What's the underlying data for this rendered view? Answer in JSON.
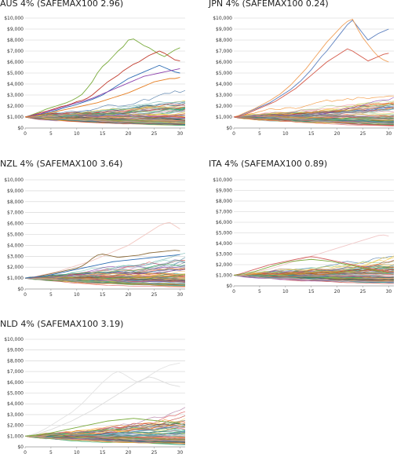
{
  "chart_data": [
    {
      "type": "line",
      "title": "AUS 4% (SAFEMAX100 2.96)",
      "xlim": [
        0,
        31
      ],
      "ylim": [
        0,
        10000
      ],
      "x_ticks": [
        0,
        5,
        10,
        15,
        20,
        25,
        30
      ],
      "y_tick_labels": [
        "$0",
        "$1,000",
        "$2,000",
        "$3,000",
        "$4,000",
        "$5,000",
        "$6,000",
        "$7,000",
        "$8,000",
        "$9,000",
        "$10,000"
      ],
      "grid": "horizontal",
      "series_count": 90,
      "series": [
        {
          "color": "#7aab3c",
          "values": [
            1000,
            1150,
            1320,
            1500,
            1700,
            1850,
            2000,
            2150,
            2300,
            2500,
            2750,
            3050,
            3600,
            4200,
            5000,
            5600,
            6000,
            6500,
            7000,
            7400,
            8000,
            8100,
            7800,
            7500,
            7300,
            7000,
            6700,
            6500,
            6800,
            7100,
            7300
          ]
        },
        {
          "color": "#c0392b",
          "values": [
            1000,
            1100,
            1250,
            1400,
            1500,
            1650,
            1800,
            1950,
            2050,
            2200,
            2400,
            2500,
            2700,
            3000,
            3400,
            3800,
            4200,
            4500,
            4800,
            5200,
            5500,
            5800,
            6000,
            6300,
            6600,
            6800,
            7000,
            6800,
            6500,
            6200,
            6100
          ]
        },
        {
          "color": "#2e6db4",
          "values": [
            1000,
            1050,
            1150,
            1250,
            1350,
            1500,
            1600,
            1750,
            1900,
            2000,
            2150,
            2300,
            2450,
            2600,
            2800,
            3000,
            3300,
            3600,
            3900,
            4200,
            4500,
            4700,
            4900,
            5100,
            5300,
            5500,
            5700,
            5500,
            5300,
            5100,
            5000
          ]
        },
        {
          "color": "#8e44ad",
          "values": [
            1000,
            1100,
            1200,
            1300,
            1450,
            1600,
            1700,
            1850,
            2000,
            2150,
            2300,
            2400,
            2550,
            2700,
            2900,
            3100,
            3300,
            3500,
            3700,
            3900,
            4100,
            4300,
            4500,
            4700,
            4800,
            4900,
            5000,
            5100,
            5200,
            5300,
            5400
          ]
        },
        {
          "color": "#e67e22",
          "values": [
            1000,
            1050,
            1100,
            1200,
            1300,
            1400,
            1500,
            1600,
            1700,
            1800,
            1900,
            2000,
            2100,
            2200,
            2300,
            2450,
            2600,
            2750,
            2900,
            3050,
            3200,
            3400,
            3600,
            3800,
            4000,
            4200,
            4300,
            4400,
            4500,
            4500,
            4600
          ]
        }
      ]
    },
    {
      "type": "line",
      "title": "JPN 4% (SAFEMAX100 0.24)",
      "xlim": [
        0,
        31
      ],
      "ylim": [
        0,
        10000
      ],
      "x_ticks": [
        0,
        5,
        10,
        15,
        20,
        25,
        30
      ],
      "y_tick_labels": [
        "$0",
        "$1,000",
        "$2,000",
        "$3,000",
        "$4,000",
        "$5,000",
        "$6,000",
        "$7,000",
        "$8,000",
        "$9,000",
        "$10,000"
      ],
      "grid": "horizontal",
      "series_count": 90,
      "series": [
        {
          "color": "#5b7fbf",
          "values": [
            1000,
            1100,
            1300,
            1500,
            1700,
            1900,
            2100,
            2300,
            2600,
            2900,
            3200,
            3500,
            3900,
            4300,
            4800,
            5300,
            5900,
            6500,
            7000,
            7600,
            8200,
            8800,
            9400,
            9800,
            9200,
            8600,
            8000,
            8300,
            8600,
            8800,
            9000
          ]
        },
        {
          "color": "#f0a05a",
          "values": [
            1000,
            1150,
            1350,
            1550,
            1750,
            2000,
            2250,
            2500,
            2800,
            3100,
            3500,
            3900,
            4400,
            4900,
            5400,
            6000,
            6600,
            7200,
            7800,
            8300,
            8800,
            9300,
            9700,
            9900,
            9000,
            8200,
            7600,
            7000,
            6500,
            6200,
            6000
          ]
        },
        {
          "color": "#d55a4a",
          "values": [
            1000,
            1050,
            1200,
            1400,
            1600,
            1800,
            2000,
            2200,
            2400,
            2700,
            3000,
            3300,
            3600,
            4000,
            4400,
            4800,
            5200,
            5600,
            6000,
            6300,
            6600,
            6900,
            7200,
            7000,
            6700,
            6400,
            6100,
            6300,
            6500,
            6700,
            6800
          ]
        }
      ]
    },
    {
      "type": "line",
      "title": "NZL 4% (SAFEMAX100 3.64)",
      "xlim": [
        0,
        31
      ],
      "ylim": [
        0,
        10000
      ],
      "x_ticks": [
        0,
        5,
        10,
        15,
        20,
        25,
        30
      ],
      "y_tick_labels": [
        "$0",
        "$1,000",
        "$2,000",
        "$3,000",
        "$4,000",
        "$5,000",
        "$6,000",
        "$7,000",
        "$8,000",
        "$9,000",
        "$10,000"
      ],
      "grid": "horizontal",
      "series_count": 90,
      "series": [
        {
          "color": "#f2c6c0",
          "values": [
            1000,
            1050,
            1150,
            1250,
            1350,
            1450,
            1550,
            1700,
            1850,
            2000,
            2150,
            2300,
            2450,
            2600,
            2800,
            3000,
            3200,
            3400,
            3600,
            3800,
            4000,
            4300,
            4600,
            4900,
            5200,
            5500,
            5800,
            6000,
            6100,
            5800,
            5500
          ]
        },
        {
          "color": "#8b6b3a",
          "values": [
            1000,
            1050,
            1100,
            1200,
            1300,
            1400,
            1500,
            1600,
            1700,
            1800,
            1900,
            2100,
            2400,
            2800,
            3100,
            3200,
            3100,
            3000,
            2900,
            2950,
            3000,
            3050,
            3100,
            3200,
            3300,
            3350,
            3400,
            3450,
            3500,
            3550,
            3500
          ]
        },
        {
          "color": "#2e6db4",
          "values": [
            1000,
            1050,
            1100,
            1150,
            1200,
            1300,
            1400,
            1500,
            1600,
            1700,
            1800,
            1900,
            2000,
            2100,
            2200,
            2300,
            2400,
            2500,
            2550,
            2600,
            2650,
            2700,
            2750,
            2800,
            2850,
            2900,
            2950,
            3000,
            3050,
            3100,
            3150
          ]
        }
      ]
    },
    {
      "type": "line",
      "title": "ITA 4% (SAFEMAX100 0.89)",
      "xlim": [
        0,
        31
      ],
      "ylim": [
        0,
        10000
      ],
      "x_ticks": [
        0,
        5,
        10,
        15,
        20,
        25,
        30
      ],
      "y_tick_labels": [
        "$0",
        "$1,000",
        "$2,000",
        "$3,000",
        "$4,000",
        "$5,000",
        "$6,000",
        "$7,000",
        "$8,000",
        "$9,000",
        "$10,000"
      ],
      "grid": "horizontal",
      "series_count": 90,
      "series": [
        {
          "color": "#f0c7c7",
          "values": [
            1000,
            1050,
            1100,
            1200,
            1300,
            1400,
            1500,
            1600,
            1750,
            1900,
            2050,
            2200,
            2350,
            2500,
            2650,
            2800,
            2950,
            3100,
            3250,
            3400,
            3550,
            3700,
            3850,
            4000,
            4150,
            4300,
            4450,
            4600,
            4750,
            4800,
            4700
          ]
        },
        {
          "color": "#d35f5f",
          "values": [
            1000,
            1100,
            1250,
            1400,
            1550,
            1700,
            1850,
            2000,
            2100,
            2200,
            2300,
            2400,
            2500,
            2600,
            2700,
            2750,
            2700,
            2600,
            2500,
            2400,
            2300,
            2200,
            2100,
            2000,
            1900,
            1800,
            1700,
            1600,
            1500,
            1400,
            1300
          ]
        },
        {
          "color": "#7aab3c",
          "values": [
            1000,
            1050,
            1150,
            1250,
            1350,
            1500,
            1650,
            1800,
            1950,
            2100,
            2200,
            2300,
            2350,
            2400,
            2450,
            2500,
            2450,
            2400,
            2350,
            2300,
            2200,
            2100,
            2000,
            1900,
            1800,
            1700,
            1600,
            1500,
            1400,
            1300,
            1200
          ]
        }
      ]
    },
    {
      "type": "line",
      "title": "NLD 4% (SAFEMAX100 3.19)",
      "xlim": [
        0,
        31
      ],
      "ylim": [
        0,
        10000
      ],
      "x_ticks": [
        0,
        5,
        10,
        15,
        20,
        25,
        30
      ],
      "y_tick_labels": [
        "$0",
        "$1,000",
        "$2,000",
        "$3,000",
        "$4,000",
        "$5,000",
        "$6,000",
        "$7,000",
        "$8,000",
        "$9,000",
        "$10,000"
      ],
      "grid": "horizontal",
      "series_count": 90,
      "series": [
        {
          "color": "#e2e2e2",
          "values": [
            1000,
            1100,
            1250,
            1450,
            1700,
            2000,
            2300,
            2600,
            2900,
            3200,
            3600,
            4000,
            4500,
            5000,
            5500,
            6000,
            6400,
            6800,
            7000,
            6800,
            6500,
            6200,
            6000,
            6300,
            6600,
            6900,
            7200,
            7400,
            7600,
            7700,
            7800
          ]
        },
        {
          "color": "#dcdcdc",
          "values": [
            1000,
            1050,
            1150,
            1300,
            1450,
            1600,
            1800,
            2000,
            2200,
            2400,
            2650,
            2900,
            3150,
            3400,
            3700,
            4000,
            4300,
            4600,
            4900,
            5200,
            5500,
            5800,
            6100,
            6300,
            6500,
            6400,
            6200,
            6000,
            5800,
            5700,
            5600
          ]
        },
        {
          "color": "#7aab3c",
          "values": [
            1000,
            1050,
            1100,
            1150,
            1200,
            1300,
            1400,
            1500,
            1600,
            1700,
            1800,
            1900,
            2000,
            2100,
            2200,
            2300,
            2400,
            2450,
            2500,
            2550,
            2600,
            2650,
            2600,
            2550,
            2500,
            2450,
            2400,
            2350,
            2300,
            2250,
            2200
          ]
        }
      ]
    }
  ]
}
